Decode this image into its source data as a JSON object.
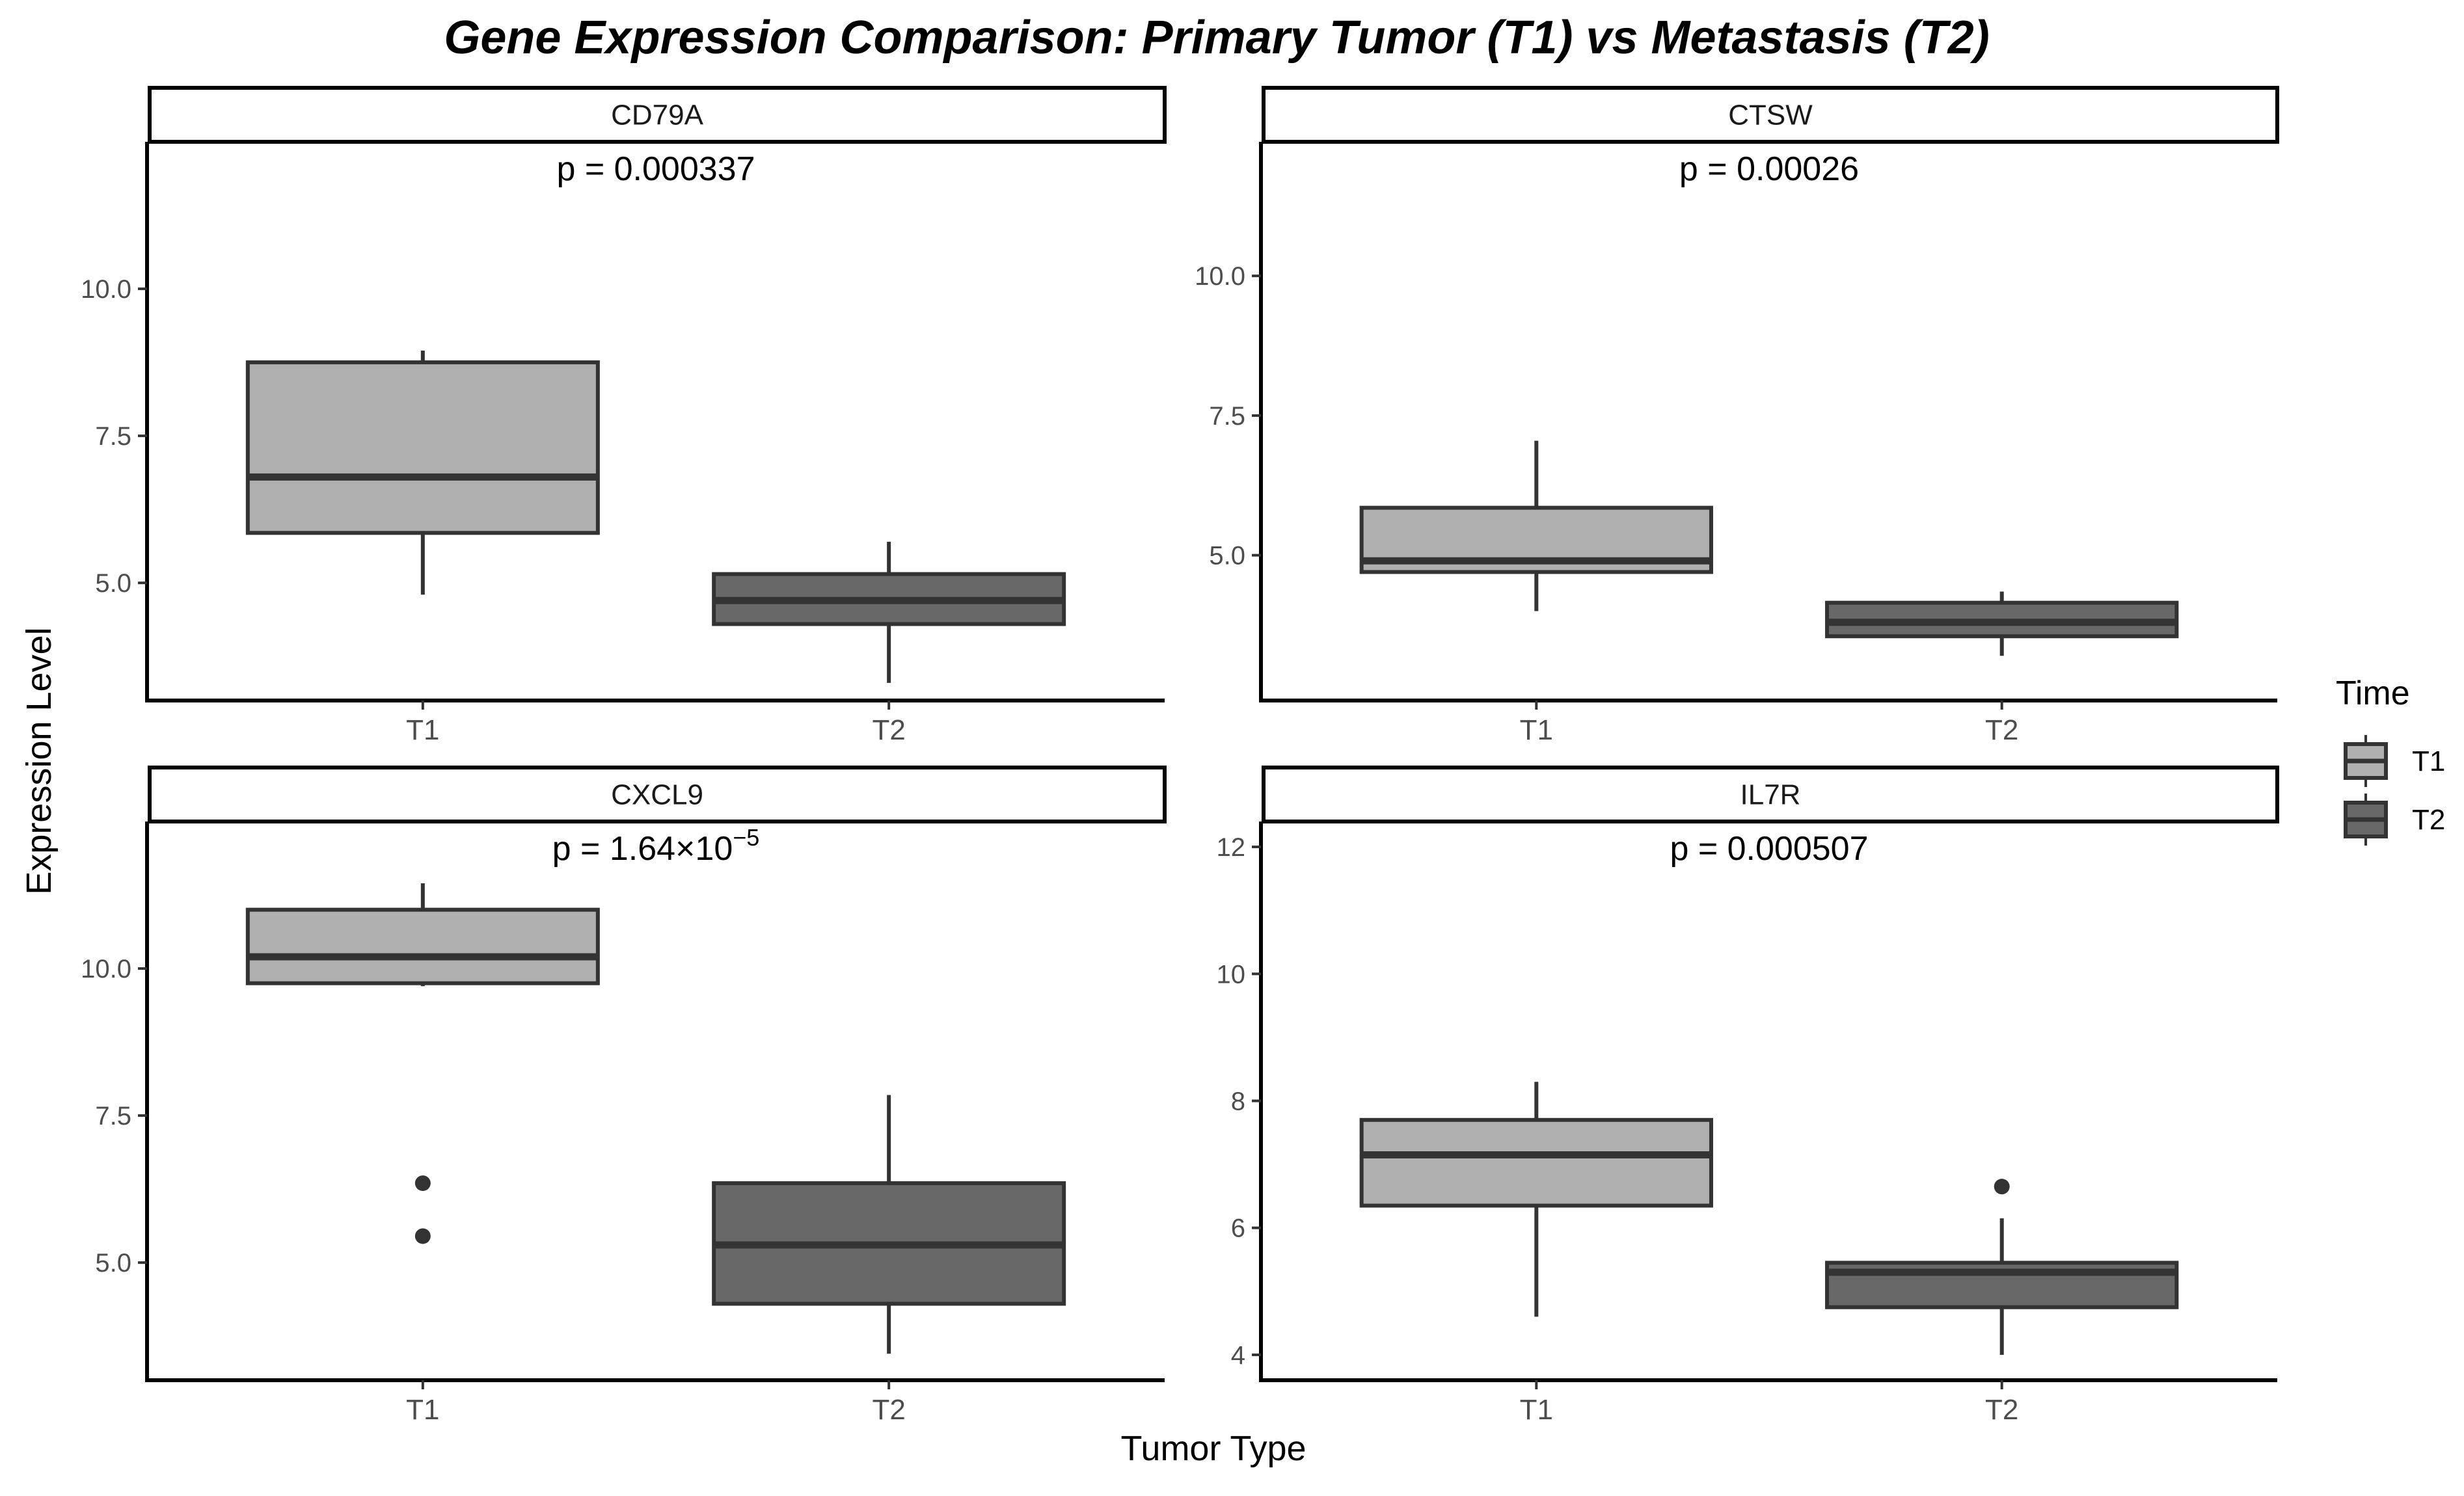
{
  "chart_data": {
    "type": "boxplot",
    "title": "Gene Expression Comparison: Primary Tumor (T1) vs Metastasis (T2)",
    "xlabel": "Tumor Type",
    "ylabel": "Expression Level",
    "legend": {
      "title": "Time",
      "position": "right",
      "entries": [
        {
          "label": "T1",
          "color": "#b0b0b0"
        },
        {
          "label": "T2",
          "color": "#686868"
        }
      ]
    },
    "categories": [
      "T1",
      "T2"
    ],
    "box_colors": {
      "T1": "#b0b0b0",
      "T2": "#686868"
    },
    "outline_color": "#333333",
    "panels": [
      {
        "gene": "CD79A",
        "p_value": "p = 0.000337",
        "ylim": [
          3.0,
          12.5
        ],
        "yticks": [
          5.0,
          7.5,
          10.0
        ],
        "tick_decimals": 1,
        "boxes": [
          {
            "group": "T1",
            "lower_whisker": 4.8,
            "q1": 5.85,
            "median": 6.8,
            "q3": 8.75,
            "upper_whisker": 8.95,
            "outliers": []
          },
          {
            "group": "T2",
            "lower_whisker": 3.3,
            "q1": 4.3,
            "median": 4.7,
            "q3": 5.15,
            "upper_whisker": 5.7,
            "outliers": []
          }
        ]
      },
      {
        "gene": "CTSW",
        "p_value": "p = 0.00026",
        "ylim": [
          2.4,
          12.4
        ],
        "yticks": [
          5.0,
          7.5,
          10.0
        ],
        "tick_decimals": 1,
        "boxes": [
          {
            "group": "T1",
            "lower_whisker": 4.0,
            "q1": 4.7,
            "median": 4.9,
            "q3": 5.85,
            "upper_whisker": 7.05,
            "outliers": []
          },
          {
            "group": "T2",
            "lower_whisker": 3.2,
            "q1": 3.55,
            "median": 3.8,
            "q3": 4.15,
            "upper_whisker": 4.35,
            "outliers": []
          }
        ]
      },
      {
        "gene": "CXCL9",
        "p_value": "p = 1.64×10",
        "p_value_exponent": "−5",
        "ylim": [
          3.0,
          12.5
        ],
        "yticks": [
          5.0,
          7.5,
          10.0
        ],
        "tick_decimals": 1,
        "boxes": [
          {
            "group": "T1",
            "lower_whisker": 9.7,
            "q1": 9.75,
            "median": 10.2,
            "q3": 11.0,
            "upper_whisker": 11.45,
            "outliers": [
              6.35,
              5.45
            ]
          },
          {
            "group": "T2",
            "lower_whisker": 3.45,
            "q1": 4.3,
            "median": 5.3,
            "q3": 6.35,
            "upper_whisker": 7.85,
            "outliers": []
          }
        ]
      },
      {
        "gene": "IL7R",
        "p_value": "p = 0.000507",
        "ylim": [
          3.6,
          12.4
        ],
        "yticks": [
          4,
          6,
          8,
          10,
          12
        ],
        "tick_decimals": 0,
        "boxes": [
          {
            "group": "T1",
            "lower_whisker": 4.6,
            "q1": 6.35,
            "median": 7.15,
            "q3": 7.7,
            "upper_whisker": 8.3,
            "outliers": []
          },
          {
            "group": "T2",
            "lower_whisker": 4.0,
            "q1": 4.75,
            "median": 5.3,
            "q3": 5.45,
            "upper_whisker": 6.15,
            "outliers": [
              6.65
            ]
          }
        ]
      }
    ]
  }
}
